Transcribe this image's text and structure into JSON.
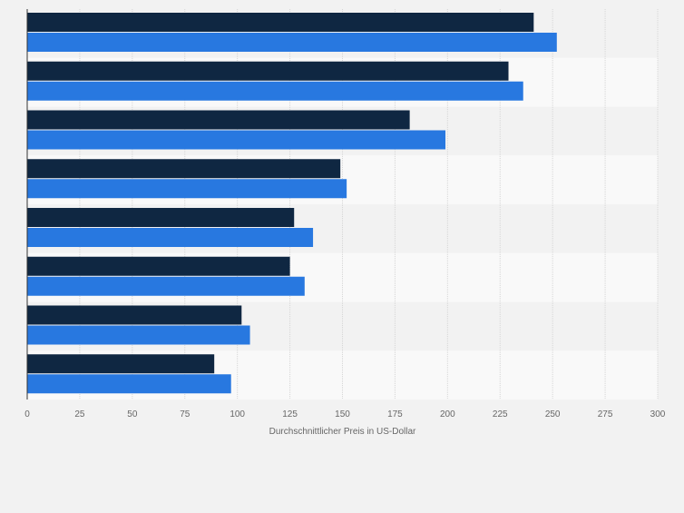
{
  "chart_data": {
    "type": "bar",
    "orientation": "horizontal",
    "categories": [
      "",
      "",
      "",
      "",
      "",
      "",
      "",
      ""
    ],
    "series": [
      {
        "values": [
          241,
          229,
          182,
          149,
          127,
          125,
          102,
          89
        ]
      },
      {
        "values": [
          252,
          236,
          199,
          152,
          136,
          132,
          106,
          97
        ]
      }
    ],
    "colors": [
      "#0f2742",
      "#2878e0"
    ],
    "xlabel": "Durchschnittlicher Preis in US-Dollar",
    "ylabel": "",
    "xlim": [
      0,
      300
    ],
    "xticks": [
      "0",
      "25",
      "50",
      "75",
      "100",
      "125",
      "150",
      "175",
      "200",
      "225",
      "250",
      "275",
      "300"
    ],
    "grid": true,
    "legend": "none"
  }
}
